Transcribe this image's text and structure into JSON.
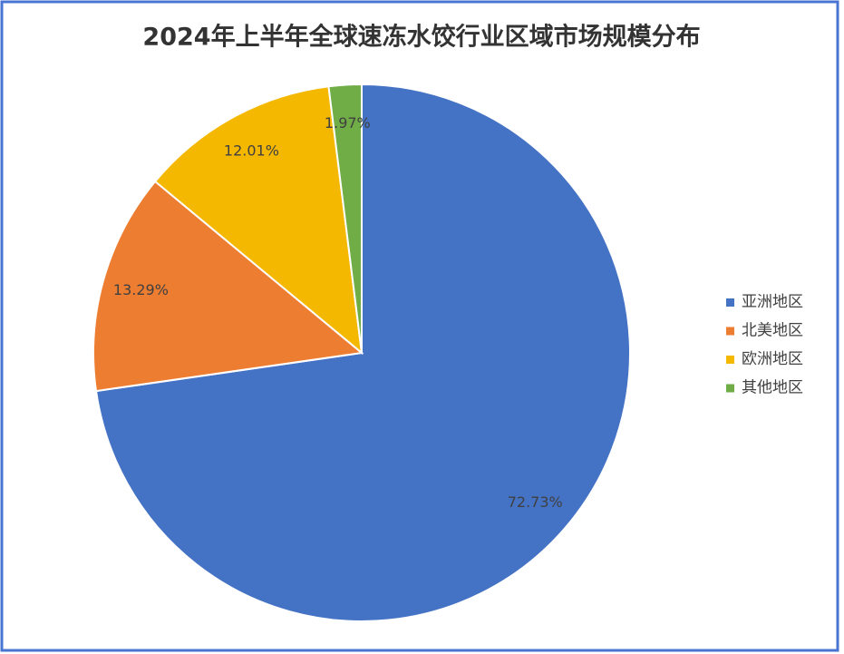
{
  "chart_data": {
    "type": "pie",
    "title": "2024年上半年全球速冻水饺行业区域市场规模分布",
    "categories": [
      "亚洲地区",
      "北美地区",
      "欧洲地区",
      "其他地区"
    ],
    "values": [
      72.73,
      13.29,
      12.01,
      1.97
    ],
    "value_labels": [
      "72.73%",
      "13.29%",
      "12.01%",
      "1.97%"
    ],
    "colors": [
      "#4472c4",
      "#ed7d31",
      "#f5b800",
      "#70ad47"
    ],
    "legend": "right"
  }
}
